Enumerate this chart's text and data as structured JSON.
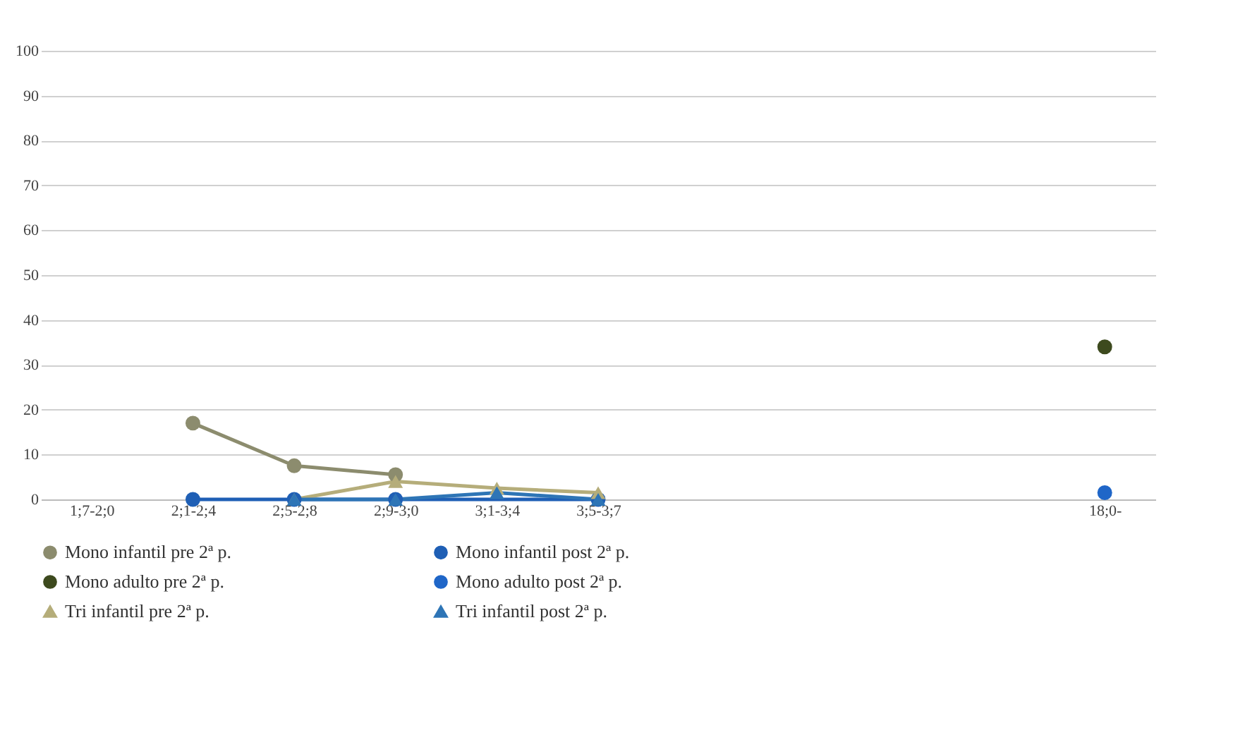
{
  "chart_data": {
    "type": "line",
    "categories": [
      "1;7-2;0",
      "2;1-2;4",
      "2;5-2;8",
      "2;9-3;0",
      "3;1-3;4",
      "3;5-3;7",
      null,
      null,
      null,
      null,
      "18;0-"
    ],
    "series": [
      {
        "name": "Mono infantil pre 2ª p.",
        "color": "#8c8c6e",
        "marker": "circle",
        "values": [
          null,
          17,
          7.5,
          5.5,
          null,
          null,
          null,
          null,
          null,
          null,
          null
        ]
      },
      {
        "name": "Mono infantil post 2ª p.",
        "color": "#1f5fb5",
        "marker": "circle",
        "values": [
          null,
          0,
          0,
          0,
          null,
          0,
          null,
          null,
          null,
          null,
          null
        ]
      },
      {
        "name": "Mono adulto pre 2ª p.",
        "color": "#3d4a1e",
        "marker": "circle",
        "values": [
          null,
          null,
          null,
          null,
          null,
          null,
          null,
          null,
          null,
          null,
          34
        ]
      },
      {
        "name": "Mono adulto post 2ª p.",
        "color": "#1f66c8",
        "marker": "circle",
        "values": [
          null,
          null,
          null,
          null,
          null,
          null,
          null,
          null,
          null,
          null,
          1.5
        ]
      },
      {
        "name": "Tri infantil pre 2ª p.",
        "color": "#b5ad7a",
        "marker": "triangle",
        "values": [
          null,
          null,
          0,
          4,
          2.5,
          1.5,
          null,
          null,
          null,
          null,
          null
        ]
      },
      {
        "name": "Tri infantil post 2ª p.",
        "color": "#2e75b6",
        "marker": "triangle",
        "values": [
          null,
          null,
          0,
          0,
          1.5,
          0,
          null,
          null,
          null,
          null,
          null
        ]
      }
    ],
    "ylim": [
      0,
      100
    ],
    "yticks": [
      0,
      10,
      20,
      30,
      40,
      50,
      60,
      70,
      80,
      90,
      100
    ],
    "grid": "y",
    "legend": "bottom",
    "line_style": "solid"
  }
}
